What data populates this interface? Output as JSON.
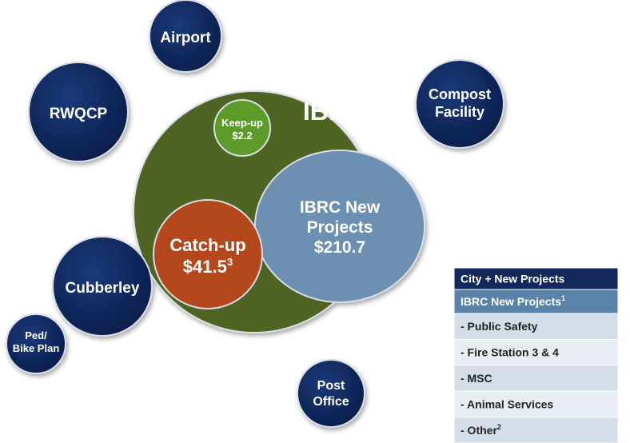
{
  "nodes": [
    {
      "lines": [
        "Airport"
      ]
    },
    {
      "lines": [
        "RWQCP"
      ]
    },
    {
      "lines": [
        "Compost",
        "Facility"
      ]
    },
    {
      "lines": [
        "IBRC"
      ]
    },
    {
      "lines": [
        "Keep-up",
        "$2.2"
      ]
    },
    {
      "lines": [
        "IBRC New",
        "Projects",
        "$210.7"
      ]
    },
    {
      "lines": [
        "Catch-up",
        "$41.5"
      ],
      "sup": "3"
    },
    {
      "lines": [
        "Cubberley"
      ]
    },
    {
      "lines": [
        "Ped/",
        "Bike Plan"
      ]
    },
    {
      "lines": [
        "Post",
        "Office"
      ]
    }
  ],
  "table": {
    "rows": [
      {
        "text": "City + New Projects"
      },
      {
        "text": "IBRC New Projects",
        "sup": "1"
      },
      {
        "text": "- Public Safety"
      },
      {
        "text": "- Fire Station 3 & 4"
      },
      {
        "text": "- MSC"
      },
      {
        "text": "- Animal Services"
      },
      {
        "text": "- Other",
        "sup": "2"
      }
    ]
  }
}
